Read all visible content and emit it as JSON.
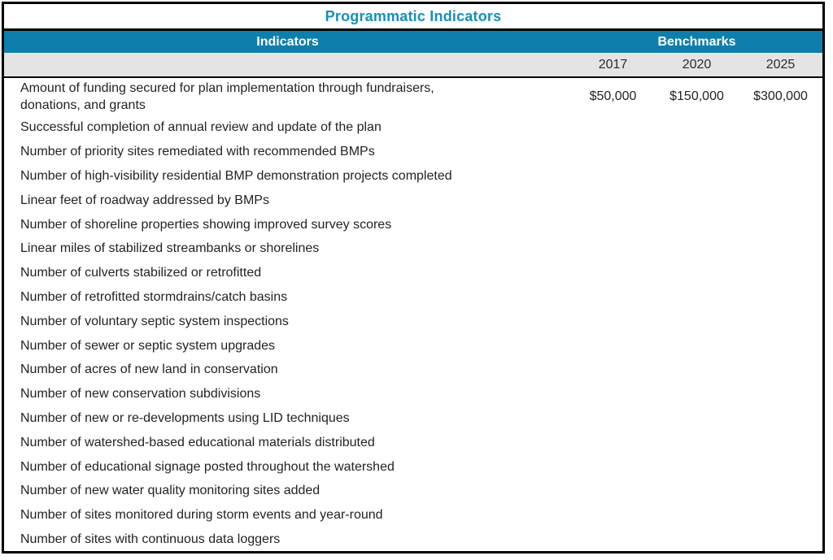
{
  "title": "Programmatic Indicators",
  "colors": {
    "header_band": "#0e7fac",
    "title_text": "#1690bc",
    "subheader_band": "#e4e4e4",
    "border": "#000000",
    "body_text": "#232323"
  },
  "table": {
    "indicators_header": "Indicators",
    "benchmarks_header": "Benchmarks",
    "years": [
      "2017",
      "2020",
      "2025"
    ],
    "rows": [
      {
        "indicator": "Amount of funding secured for plan implementation through fundraisers,\ndonations, and grants",
        "values": [
          "$50,000",
          "$150,000",
          "$300,000"
        ]
      },
      {
        "indicator": "Successful completion of annual review and update of the plan",
        "values": [
          "",
          "",
          ""
        ]
      },
      {
        "indicator": "Number of priority sites remediated with recommended BMPs",
        "values": [
          "",
          "",
          ""
        ]
      },
      {
        "indicator": "Number of high-visibility residential BMP demonstration projects completed",
        "values": [
          "",
          "",
          ""
        ]
      },
      {
        "indicator": "Linear feet of roadway addressed by BMPs",
        "values": [
          "",
          "",
          ""
        ]
      },
      {
        "indicator": "Number of shoreline properties showing improved survey scores",
        "values": [
          "",
          "",
          ""
        ]
      },
      {
        "indicator": "Linear miles of stabilized streambanks or shorelines",
        "values": [
          "",
          "",
          ""
        ]
      },
      {
        "indicator": "Number of culverts stabilized or retrofitted",
        "values": [
          "",
          "",
          ""
        ]
      },
      {
        "indicator": "Number of retrofitted stormdrains/catch basins",
        "values": [
          "",
          "",
          ""
        ]
      },
      {
        "indicator": "Number of voluntary septic system inspections",
        "values": [
          "",
          "",
          ""
        ]
      },
      {
        "indicator": "Number of sewer or septic system upgrades",
        "values": [
          "",
          "",
          ""
        ]
      },
      {
        "indicator": "Number of acres of new land in conservation",
        "values": [
          "",
          "",
          ""
        ]
      },
      {
        "indicator": "Number of new conservation subdivisions",
        "values": [
          "",
          "",
          ""
        ]
      },
      {
        "indicator": "Number of new or re-developments using LID techniques",
        "values": [
          "",
          "",
          ""
        ]
      },
      {
        "indicator": "Number of watershed-based educational materials distributed",
        "values": [
          "",
          "",
          ""
        ]
      },
      {
        "indicator": "Number of educational signage posted throughout the watershed",
        "values": [
          "",
          "",
          ""
        ]
      },
      {
        "indicator": "Number of new water quality monitoring sites added",
        "values": [
          "",
          "",
          ""
        ]
      },
      {
        "indicator": "Number of sites monitored during storm events and year-round",
        "values": [
          "",
          "",
          ""
        ]
      },
      {
        "indicator": "Number of sites with continuous data loggers",
        "values": [
          "",
          "",
          ""
        ]
      }
    ]
  }
}
